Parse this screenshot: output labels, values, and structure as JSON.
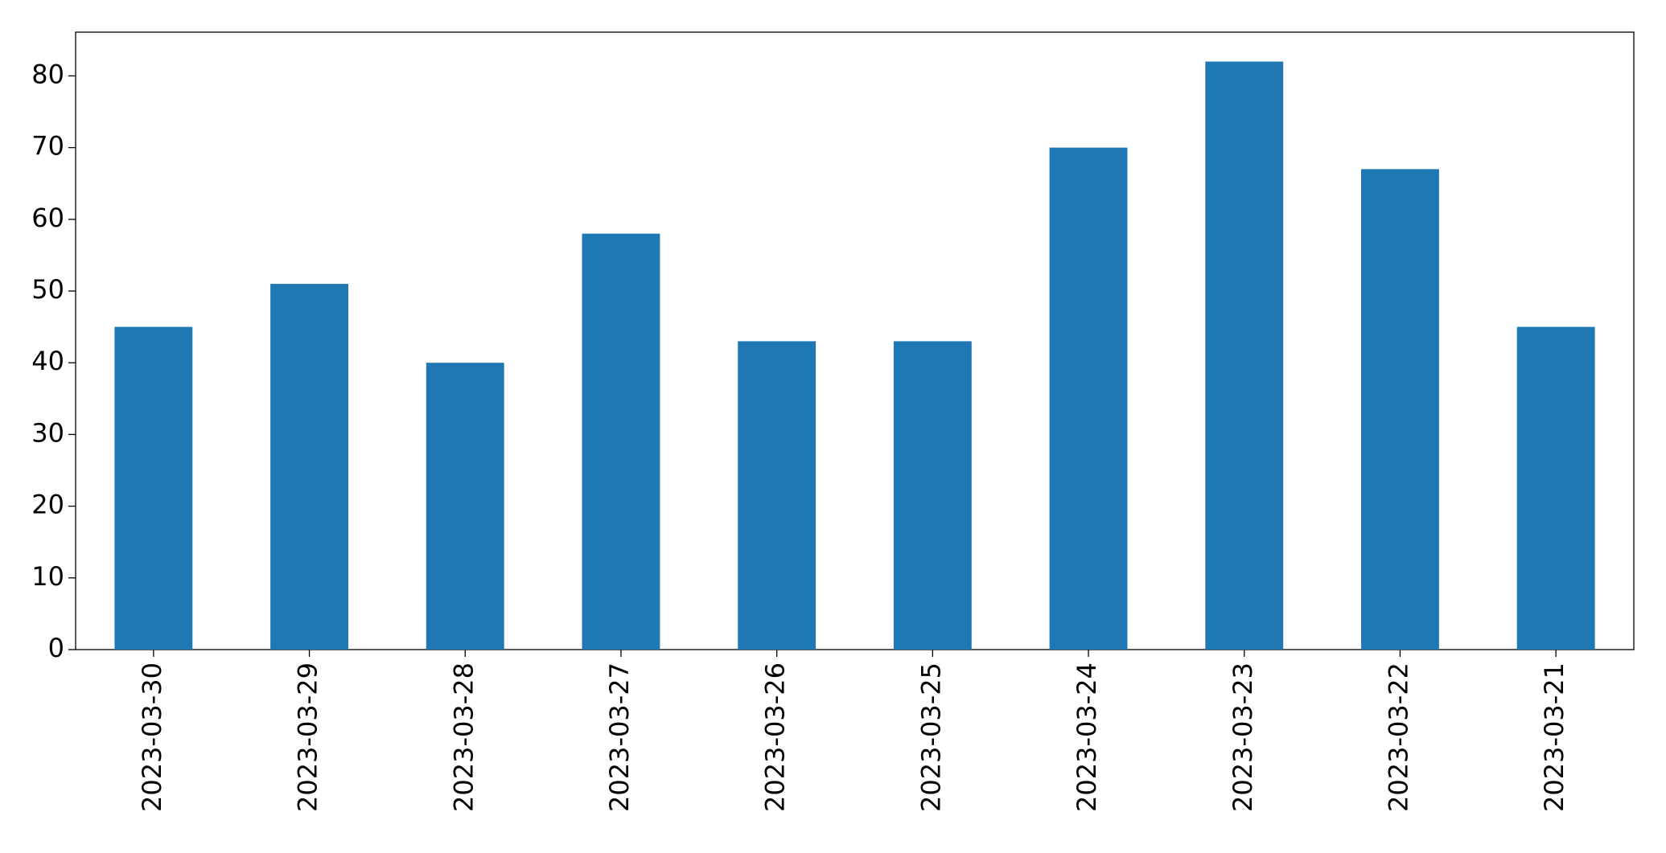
{
  "chart_data": {
    "type": "bar",
    "categories": [
      "2023-03-30",
      "2023-03-29",
      "2023-03-28",
      "2023-03-27",
      "2023-03-26",
      "2023-03-25",
      "2023-03-24",
      "2023-03-23",
      "2023-03-22",
      "2023-03-21"
    ],
    "values": [
      45,
      51,
      40,
      58,
      43,
      43,
      70,
      82,
      67,
      45
    ],
    "color": "#1f77b4",
    "ylim": [
      0,
      86.1
    ],
    "yticks": [
      0,
      10,
      20,
      30,
      40,
      50,
      60,
      70,
      80
    ],
    "grid": false
  }
}
